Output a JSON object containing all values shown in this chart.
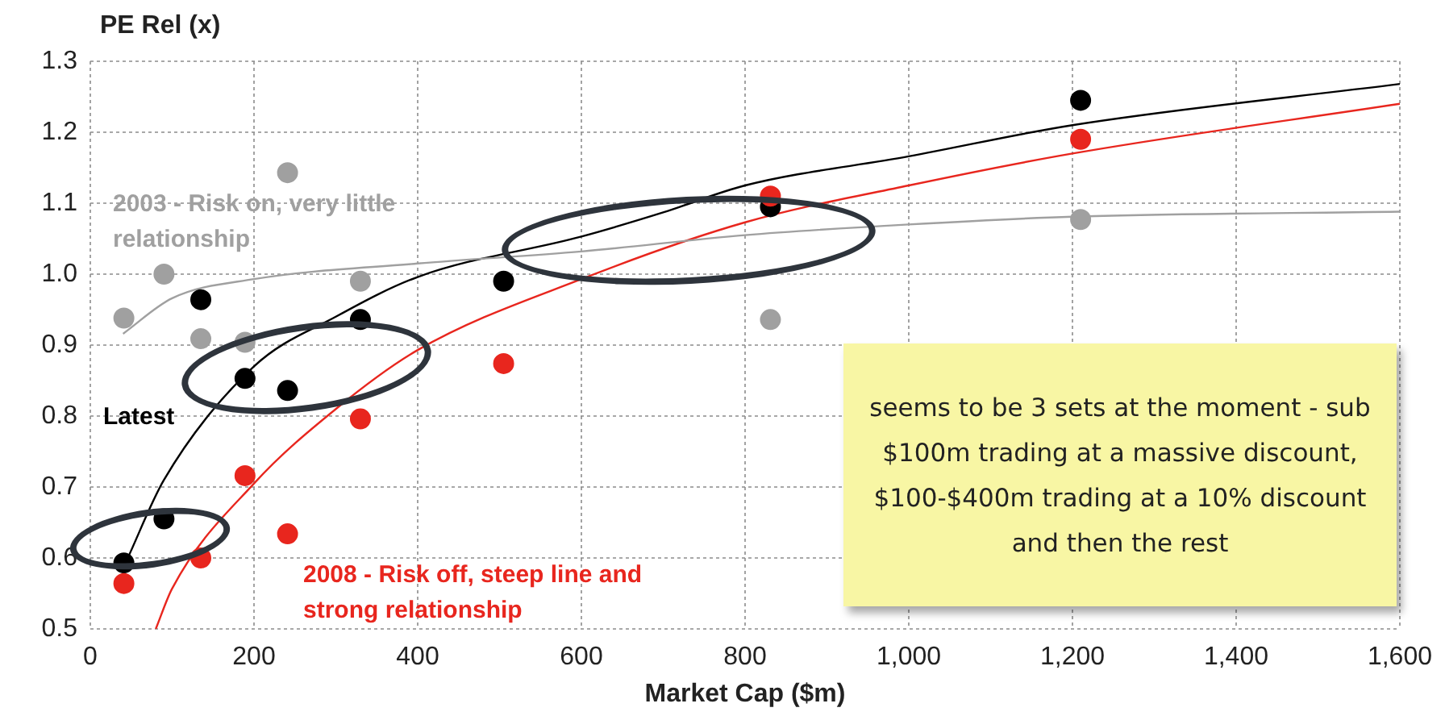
{
  "chart_data": {
    "type": "scatter",
    "xlabel": "Market Cap ($m)",
    "ylabel": "PE Rel (x)",
    "xlim": [
      0,
      1600
    ],
    "ylim": [
      0.5,
      1.3
    ],
    "xticks": [
      0,
      200,
      400,
      600,
      800,
      {
        "value": 1000,
        "label": "1,000"
      },
      {
        "value": 1200,
        "label": "1,200"
      },
      {
        "value": 1400,
        "label": "1,400"
      },
      {
        "value": 1600,
        "label": "1,600"
      }
    ],
    "yticks": [
      {
        "value": 0.5,
        "label": "0.5"
      },
      {
        "value": 0.6,
        "label": "0.6"
      },
      {
        "value": 0.7,
        "label": "0.7"
      },
      {
        "value": 0.8,
        "label": "0.8"
      },
      {
        "value": 0.9,
        "label": "0.9"
      },
      {
        "value": 1,
        "label": "1.0"
      },
      {
        "value": 1.1,
        "label": "1.1"
      },
      {
        "value": 1.2,
        "label": "1.2"
      },
      {
        "value": 1.3,
        "label": "1.3"
      }
    ],
    "grid": true,
    "legend": false,
    "marker": "circle",
    "series": [
      {
        "type": "line",
        "marker": "none",
        "color": "#a0a0a0",
        "x": [
          40,
          100,
          200,
          400,
          600,
          800,
          1000,
          1200,
          1600
        ],
        "values": [
          0.916,
          0.966,
          0.993,
          1.015,
          1.032,
          1.055,
          1.07,
          1.081,
          1.088
        ]
      },
      {
        "type": "line",
        "marker": "none",
        "color": "#e8261e",
        "x": [
          80,
          100,
          200,
          300,
          400,
          600,
          800,
          1000,
          1200,
          1600
        ],
        "values": [
          0.5,
          0.557,
          0.705,
          0.81,
          0.893,
          0.993,
          1.073,
          1.125,
          1.17,
          1.24
        ]
      },
      {
        "type": "line",
        "marker": "none",
        "color": "#000000",
        "x": [
          45,
          90,
          200,
          300,
          400,
          600,
          700,
          800,
          1000,
          1200,
          1600
        ],
        "values": [
          0.598,
          0.71,
          0.87,
          0.94,
          0.996,
          1.053,
          1.087,
          1.125,
          1.166,
          1.21,
          1.268
        ]
      },
      {
        "type": "scatter",
        "color": "#a0a0a0",
        "x": [
          41,
          90,
          135,
          189,
          241,
          330,
          831,
          1210
        ],
        "values": [
          0.938,
          1.0,
          0.909,
          0.904,
          1.143,
          0.99,
          0.936,
          1.077
        ]
      },
      {
        "type": "scatter",
        "color": "#e8261e",
        "x": [
          41,
          135,
          189,
          241,
          330,
          505,
          831,
          1210
        ],
        "values": [
          0.564,
          0.6,
          0.716,
          0.634,
          0.796,
          0.874,
          1.11,
          1.19
        ]
      },
      {
        "type": "scatter",
        "color": "#000000",
        "x": [
          41,
          90,
          135,
          189,
          241,
          330,
          505,
          831,
          1210
        ],
        "values": [
          0.593,
          0.655,
          0.964,
          0.853,
          0.836,
          0.936,
          0.99,
          1.095,
          1.245
        ]
      }
    ],
    "annotations": [
      "2003 - Risk on, very little relationship",
      "Latest",
      "2008 - Risk off, steep line and strong relationship",
      "seems to be 3 sets at the moment - sub $100m trading at a massive discount, $100-$400m trading at a 10% discount and then the rest"
    ]
  }
}
